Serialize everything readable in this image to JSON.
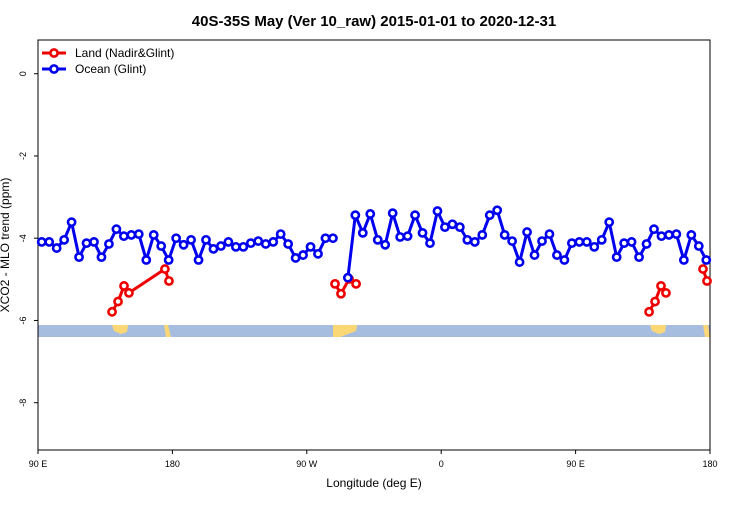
{
  "chart_data": {
    "type": "line",
    "title": "40S-35S May (Ver 10_raw)   2015-01-01 to 2020-12-31",
    "xlabel": "Longitude (deg E)",
    "ylabel": "XCO2 - MLO trend (ppm)",
    "xlim": [
      90,
      540
    ],
    "ylim": [
      -9.15,
      0.82
    ],
    "xticks": [
      {
        "value": 90,
        "label": "90 E"
      },
      180,
      {
        "value": 270,
        "label": "90 W"
      },
      {
        "value": 360,
        "label": "0"
      },
      {
        "value": 450,
        "label": "90 E"
      },
      {
        "value": 540,
        "label": "180"
      }
    ],
    "yticks": [
      0,
      -2,
      -4,
      -6,
      -8
    ],
    "legend": "top-left",
    "series": [
      {
        "name": "Land (Nadir&Glint)",
        "color": "#ee0000",
        "x": [
          139.6,
          143.6,
          147.6,
          150.9,
          175.0,
          177.7,
          null,
          288.9,
          292.9,
          298.3,
          303.0,
          null,
          499.2,
          503.2,
          507.2,
          510.5,
          null,
          535.3,
          538.0
        ],
        "values": [
          -5.79,
          -5.54,
          -5.16,
          -5.33,
          -4.75,
          -5.04,
          null,
          -5.11,
          -5.35,
          -4.99,
          -5.11,
          null,
          -5.79,
          -5.54,
          -5.16,
          -5.33,
          null,
          -4.75,
          -5.04
        ]
      },
      {
        "name": "Ocean (Glint)",
        "color": "#0000ee",
        "x": [
          92.5,
          97.5,
          102.5,
          107.5,
          112.5,
          117.5,
          122.5,
          127.5,
          132.5,
          137.5,
          142.5,
          147.5,
          152.5,
          157.5,
          162.5,
          167.5,
          172.5,
          177.5,
          182.5,
          187.5,
          192.5,
          197.5,
          202.5,
          207.5,
          212.5,
          217.5,
          222.5,
          227.5,
          232.5,
          237.5,
          242.5,
          247.5,
          252.5,
          257.5,
          262.5,
          267.5,
          272.5,
          277.5,
          282.5,
          287.5,
          292.5,
          297.5,
          302.5,
          307.5,
          312.5,
          317.5,
          322.5,
          327.5,
          332.5,
          337.5,
          342.5,
          347.5,
          352.5,
          357.5,
          362.5,
          367.5,
          372.5,
          377.5,
          382.5,
          387.5,
          392.5,
          397.5,
          402.5,
          407.5,
          412.5,
          417.5,
          422.5,
          427.5,
          432.5,
          437.5,
          442.5,
          447.5,
          452.5,
          457.5,
          462.5,
          467.5,
          472.5,
          477.5,
          482.5,
          487.5,
          492.5,
          497.5,
          502.5,
          507.5,
          512.5,
          517.5,
          522.5,
          527.5,
          532.5,
          537.5
        ],
        "values": [
          -4.09,
          -4.09,
          -4.24,
          -4.04,
          -3.61,
          -4.46,
          -4.12,
          -4.09,
          -4.46,
          -4.14,
          -3.78,
          -3.95,
          -3.92,
          -3.9,
          -4.53,
          -3.92,
          -4.19,
          -4.53,
          -4.0,
          -4.16,
          -4.04,
          -4.53,
          -4.04,
          -4.26,
          -4.19,
          -4.09,
          -4.21,
          -4.21,
          -4.12,
          -4.07,
          -4.14,
          -4.09,
          -3.9,
          -4.14,
          -4.48,
          -4.41,
          -4.21,
          -4.38,
          -4.0,
          -4.0,
          null,
          -4.96,
          -3.44,
          -3.87,
          -3.41,
          -4.04,
          -4.16,
          -3.39,
          -3.97,
          -3.95,
          -3.44,
          -3.87,
          -4.12,
          -3.34,
          -3.73,
          -3.66,
          -3.73,
          -4.04,
          -4.09,
          -3.92,
          -3.44,
          -3.32,
          -3.92,
          -4.07,
          -4.58,
          -3.85,
          -4.41,
          -4.07,
          -3.9,
          -4.41,
          -4.53,
          -4.12,
          -4.09,
          -4.09,
          -4.21,
          -4.04,
          -3.61,
          -4.46,
          -4.12,
          -4.09,
          -4.46,
          -4.14,
          -3.78,
          -3.95,
          -3.92,
          -3.9,
          -4.53,
          -3.92,
          -4.19,
          -4.53
        ]
      }
    ]
  }
}
